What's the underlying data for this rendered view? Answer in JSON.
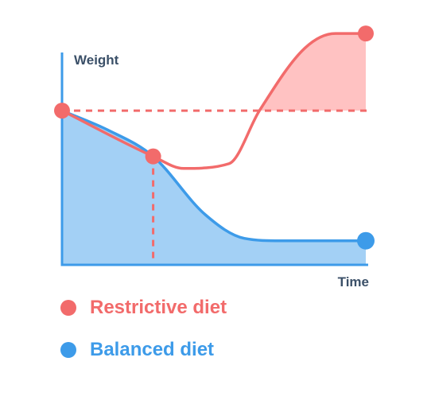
{
  "chart_data": {
    "type": "area",
    "xlabel": "Time",
    "ylabel": "Weight",
    "x_ticks": "none",
    "y_ticks": "none",
    "xlim": [
      0,
      100
    ],
    "ylim": [
      0,
      100
    ],
    "reference_lines": [
      {
        "orientation": "horizontal",
        "value": 64,
        "style": "dashed",
        "color": "#f26b6b"
      },
      {
        "orientation": "vertical",
        "value": 30,
        "style": "dashed",
        "color": "#f26b6b"
      }
    ],
    "series": [
      {
        "name": "Restrictive diet",
        "color": "#f26b6b",
        "fill": "#ffc2c2",
        "points": [
          [
            0,
            64
          ],
          [
            30,
            45
          ],
          [
            40,
            40
          ],
          [
            55,
            42
          ],
          [
            65,
            64
          ],
          [
            80,
            90
          ],
          [
            90,
            96
          ],
          [
            100,
            96
          ]
        ],
        "markers": [
          [
            0,
            64
          ],
          [
            30,
            45
          ],
          [
            100,
            96
          ]
        ]
      },
      {
        "name": "Balanced diet",
        "color": "#3d9be9",
        "fill": "#a3d0f5",
        "points": [
          [
            0,
            64
          ],
          [
            15,
            56
          ],
          [
            30,
            45
          ],
          [
            47,
            21
          ],
          [
            60,
            11
          ],
          [
            72,
            10
          ],
          [
            100,
            10
          ]
        ],
        "markers": [
          [
            100,
            10
          ]
        ]
      }
    ],
    "legend_position": "bottom-left"
  }
}
